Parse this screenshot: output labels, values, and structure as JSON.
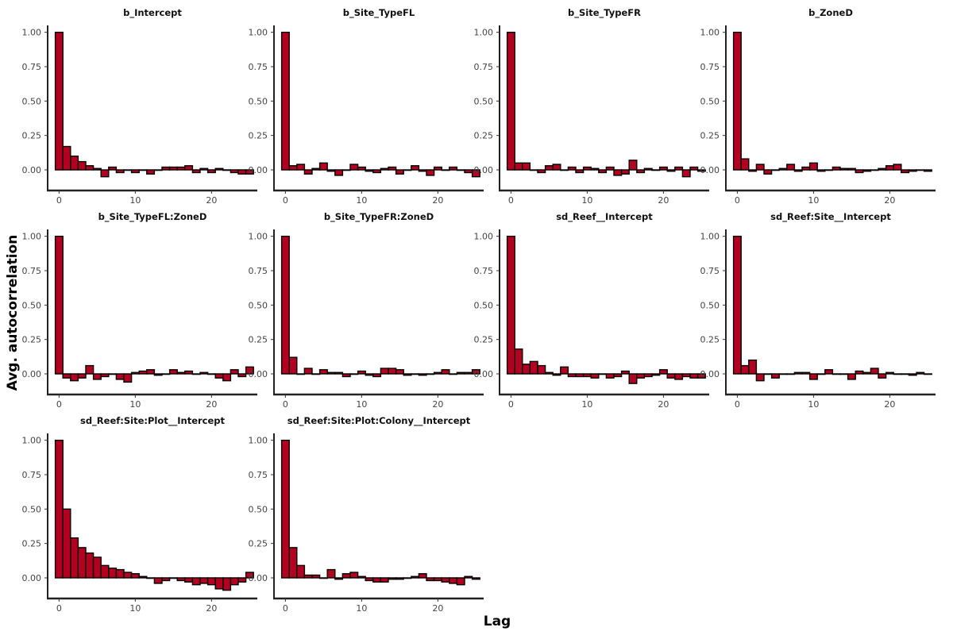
{
  "chart_data": {
    "type": "bar",
    "xlabel": "Lag",
    "ylabel": "Avg.  autocorrelation",
    "ylim": [
      -0.15,
      1.05
    ],
    "yticks": [
      0.0,
      0.25,
      0.5,
      0.75,
      1.0
    ],
    "ytick_labels": [
      "0.00",
      "0.25",
      "0.50",
      "0.75",
      "1.00"
    ],
    "xlim": [
      -1.5,
      26
    ],
    "xticks": [
      0,
      10,
      20
    ],
    "xtick_labels": [
      "0",
      "10",
      "20"
    ],
    "lags": [
      0,
      1,
      2,
      3,
      4,
      5,
      6,
      7,
      8,
      9,
      10,
      11,
      12,
      13,
      14,
      15,
      16,
      17,
      18,
      19,
      20,
      21,
      22,
      23,
      24,
      25
    ],
    "bar_color": "#b40020",
    "panels": [
      {
        "title": "b_Intercept",
        "values": [
          1.0,
          0.17,
          0.1,
          0.06,
          0.03,
          0.01,
          -0.05,
          0.02,
          -0.02,
          0.0,
          -0.02,
          0.0,
          -0.03,
          0.0,
          0.02,
          0.02,
          0.02,
          0.03,
          -0.02,
          0.01,
          -0.02,
          0.01,
          0.0,
          -0.02,
          -0.03,
          -0.03
        ]
      },
      {
        "title": "b_Site_TypeFL",
        "values": [
          1.0,
          0.03,
          0.04,
          -0.03,
          0.01,
          0.05,
          -0.01,
          -0.04,
          0.0,
          0.04,
          0.02,
          -0.01,
          -0.02,
          0.01,
          0.02,
          -0.03,
          0.0,
          0.03,
          -0.01,
          -0.04,
          0.02,
          0.0,
          0.02,
          0.0,
          -0.02,
          -0.05
        ]
      },
      {
        "title": "b_Site_TypeFR",
        "values": [
          1.0,
          0.05,
          0.05,
          0.0,
          -0.02,
          0.03,
          0.04,
          0.0,
          0.02,
          -0.02,
          0.02,
          0.01,
          -0.02,
          0.02,
          -0.04,
          -0.03,
          0.07,
          -0.02,
          0.01,
          0.0,
          0.02,
          -0.01,
          0.02,
          -0.05,
          0.02,
          -0.01
        ]
      },
      {
        "title": "b_ZoneD",
        "values": [
          1.0,
          0.08,
          -0.01,
          0.04,
          -0.03,
          0.0,
          0.01,
          0.04,
          -0.01,
          0.02,
          0.05,
          -0.01,
          0.0,
          0.02,
          0.01,
          0.01,
          -0.02,
          -0.01,
          0.0,
          0.01,
          0.03,
          0.04,
          -0.02,
          -0.01,
          0.0,
          -0.01
        ]
      },
      {
        "title": "b_Site_TypeFL:ZoneD",
        "values": [
          1.0,
          -0.03,
          -0.05,
          -0.03,
          0.06,
          -0.04,
          -0.02,
          0.0,
          -0.04,
          -0.06,
          0.01,
          0.02,
          0.03,
          -0.01,
          0.0,
          0.03,
          0.01,
          0.02,
          0.0,
          0.01,
          0.0,
          -0.03,
          -0.05,
          0.03,
          -0.02,
          0.05
        ]
      },
      {
        "title": "b_Site_TypeFR:ZoneD",
        "values": [
          1.0,
          0.12,
          0.0,
          0.04,
          0.0,
          0.03,
          0.01,
          0.01,
          -0.02,
          0.0,
          0.02,
          -0.01,
          -0.02,
          0.04,
          0.04,
          0.03,
          -0.01,
          0.0,
          -0.01,
          0.0,
          0.01,
          0.03,
          0.0,
          0.01,
          0.01,
          0.03
        ]
      },
      {
        "title": "sd_Reef__Intercept",
        "values": [
          1.0,
          0.18,
          0.07,
          0.09,
          0.06,
          0.01,
          -0.01,
          0.05,
          -0.02,
          -0.02,
          -0.02,
          -0.03,
          0.0,
          -0.03,
          -0.02,
          0.02,
          -0.07,
          -0.03,
          -0.02,
          -0.01,
          0.03,
          -0.03,
          -0.04,
          -0.02,
          -0.03,
          -0.03
        ]
      },
      {
        "title": "sd_Reef:Site__Intercept",
        "values": [
          1.0,
          0.06,
          0.1,
          -0.05,
          0.0,
          -0.03,
          0.0,
          0.0,
          0.01,
          0.01,
          -0.04,
          0.0,
          0.03,
          0.0,
          0.0,
          -0.04,
          0.02,
          0.01,
          0.04,
          -0.03,
          0.01,
          0.0,
          0.0,
          -0.01,
          0.01,
          0.0
        ]
      },
      {
        "title": "sd_Reef:Site:Plot__Intercept",
        "values": [
          1.0,
          0.5,
          0.29,
          0.22,
          0.18,
          0.15,
          0.09,
          0.07,
          0.06,
          0.04,
          0.03,
          0.01,
          0.0,
          -0.04,
          -0.02,
          0.0,
          -0.02,
          -0.03,
          -0.05,
          -0.04,
          -0.05,
          -0.08,
          -0.09,
          -0.05,
          -0.03,
          0.04
        ]
      },
      {
        "title": "sd_Reef:Site:Plot:Colony__Intercept",
        "values": [
          1.0,
          0.22,
          0.09,
          0.02,
          0.02,
          0.0,
          0.06,
          -0.01,
          0.03,
          0.04,
          0.01,
          -0.02,
          -0.03,
          -0.03,
          -0.01,
          -0.01,
          0.0,
          0.01,
          0.03,
          -0.02,
          -0.02,
          -0.03,
          -0.04,
          -0.05,
          0.01,
          -0.01
        ]
      }
    ]
  }
}
